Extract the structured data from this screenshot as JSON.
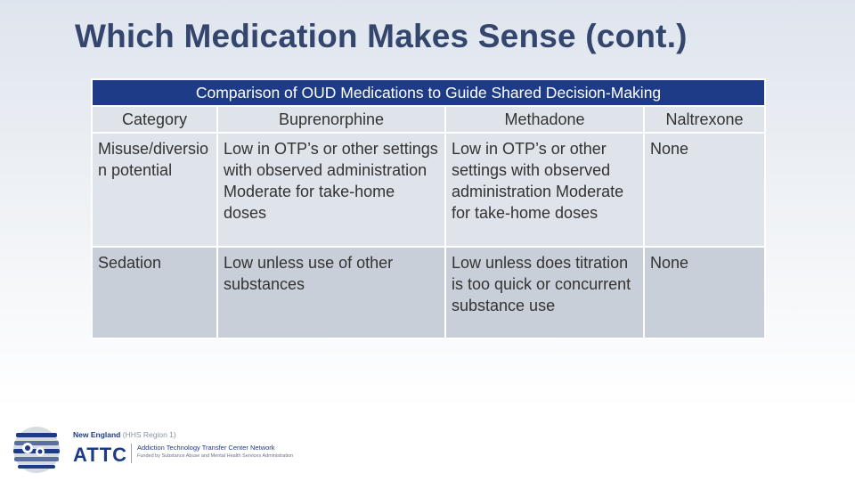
{
  "slide": {
    "title": "Which Medication Makes Sense (cont.)"
  },
  "table": {
    "caption": "Comparison of OUD Medications to Guide Shared Decision-Making",
    "headers": [
      "Category",
      "Buprenorphine",
      "Methadone",
      "Naltrexone"
    ],
    "rows": [
      {
        "category": "Misuse/diversion potential",
        "buprenorphine": "Low in OTP’s or other settings with observed administration Moderate for take-home doses",
        "methadone": "Low in OTP’s or other settings with observed administration Moderate for take-home doses",
        "naltrexone": "None"
      },
      {
        "category": "Sedation",
        "buprenorphine": "Low unless use of other substances",
        "methadone": "Low unless does titration is too quick or concurrent substance use",
        "naltrexone": "None"
      }
    ]
  },
  "logo": {
    "region": "New England",
    "region_note": "(HHS Region 1)",
    "name": "ATTC",
    "network": "Addiction Technology Transfer Center Network",
    "funder": "Funded by Substance Abuse and Mental Health Services Administration"
  },
  "colors": {
    "title": "#34466e",
    "caption_bg": "#1d3b86",
    "row_light": "#dfe3ea",
    "row_dark": "#c9cfd9"
  }
}
